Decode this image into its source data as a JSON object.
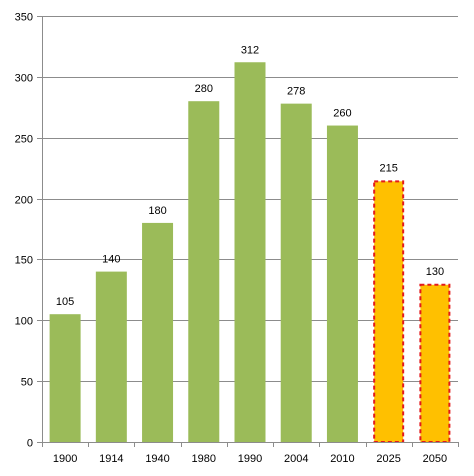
{
  "chart_data": {
    "type": "bar",
    "title": "",
    "xlabel": "",
    "ylabel": "",
    "categories": [
      "1900",
      "1914",
      "1940",
      "1980",
      "1990",
      "2004",
      "2010",
      "2025",
      "2050"
    ],
    "values": [
      105,
      140,
      180,
      280,
      312,
      278,
      260,
      215,
      130
    ],
    "projected": [
      false,
      false,
      false,
      false,
      false,
      false,
      false,
      true,
      true
    ],
    "ylim": [
      0,
      350
    ],
    "yticks": [
      0,
      50,
      100,
      150,
      200,
      250,
      300,
      350
    ],
    "grid": true,
    "legend": "none",
    "colors": {
      "bar": "#9bbb59",
      "projected_fill": "#ffc000",
      "projected_border": "#e31a1c",
      "grid": "#8c8c8c",
      "axis": "#8c8c8c"
    }
  }
}
